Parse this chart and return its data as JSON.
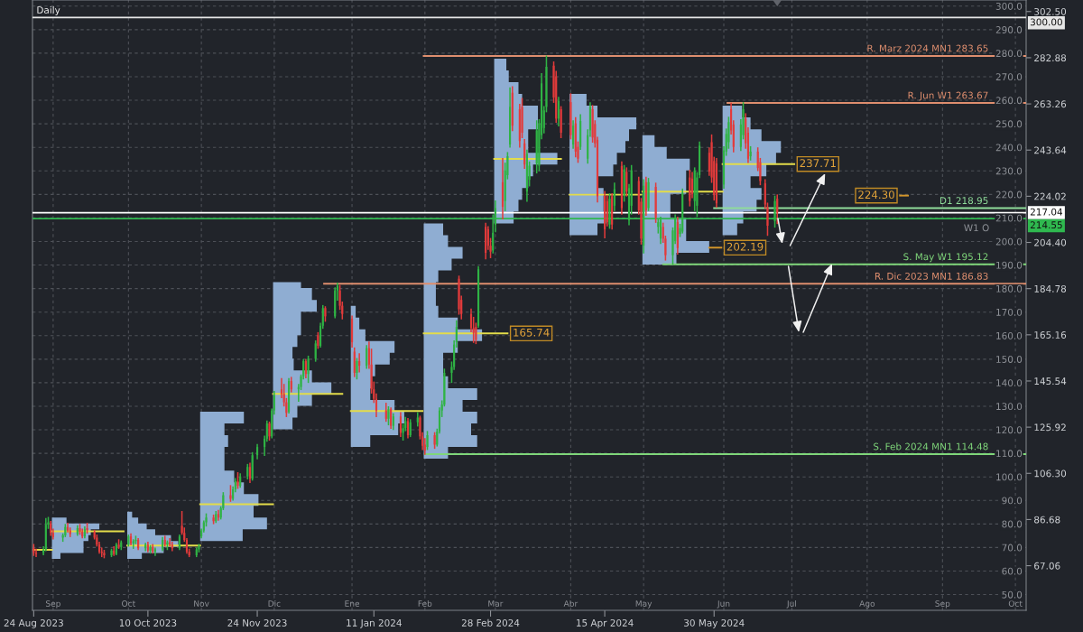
{
  "chart_data": {
    "type": "candlestick",
    "title": "Daily",
    "x": [
      "2023-08-24",
      "2023-08-25",
      "2023-08-28",
      "2023-08-29",
      "2023-08-30",
      "2023-08-31",
      "2023-09-01",
      "2023-09-05",
      "2023-09-06",
      "2023-09-07",
      "2023-09-08",
      "2023-09-11",
      "2023-09-12",
      "2023-09-13",
      "2023-09-14",
      "2023-09-15",
      "2023-09-18",
      "2023-09-19",
      "2023-09-20",
      "2023-09-21",
      "2023-09-22",
      "2023-09-25",
      "2023-09-26",
      "2023-09-27",
      "2023-09-28",
      "2023-09-29",
      "2023-10-02",
      "2023-10-03",
      "2023-10-04",
      "2023-10-05",
      "2023-10-06",
      "2023-10-09",
      "2023-10-10",
      "2023-10-11",
      "2023-10-12",
      "2023-10-13",
      "2023-10-16",
      "2023-10-17",
      "2023-10-18",
      "2023-10-19",
      "2023-10-20",
      "2023-10-23",
      "2023-10-24",
      "2023-10-25",
      "2023-10-26",
      "2023-10-27",
      "2023-10-30",
      "2023-10-31",
      "2023-11-01",
      "2023-11-02",
      "2023-11-03",
      "2023-11-06",
      "2023-11-07",
      "2023-11-08",
      "2023-11-09",
      "2023-11-10",
      "2023-11-13",
      "2023-11-14",
      "2023-11-15",
      "2023-11-16",
      "2023-11-17",
      "2023-11-20",
      "2023-11-21",
      "2023-11-22",
      "2023-11-24",
      "2023-11-27",
      "2023-11-28",
      "2023-11-29",
      "2023-11-30",
      "2023-12-01",
      "2023-12-04",
      "2023-12-05",
      "2023-12-06",
      "2023-12-07",
      "2023-12-08",
      "2023-12-11",
      "2023-12-12",
      "2023-12-13",
      "2023-12-14",
      "2023-12-15",
      "2023-12-18",
      "2023-12-19",
      "2023-12-20",
      "2023-12-21",
      "2023-12-22",
      "2023-12-26",
      "2023-12-27",
      "2023-12-28",
      "2023-12-29",
      "2024-01-02",
      "2024-01-03",
      "2024-01-04",
      "2024-01-05",
      "2024-01-08",
      "2024-01-09",
      "2024-01-10",
      "2024-01-11",
      "2024-01-12",
      "2024-01-16",
      "2024-01-17",
      "2024-01-18",
      "2024-01-19",
      "2024-01-22",
      "2024-01-23",
      "2024-01-24",
      "2024-01-25",
      "2024-01-26",
      "2024-01-29",
      "2024-01-30",
      "2024-01-31",
      "2024-02-01",
      "2024-02-02",
      "2024-02-05",
      "2024-02-06",
      "2024-02-07",
      "2024-02-08",
      "2024-02-09",
      "2024-02-12",
      "2024-02-13",
      "2024-02-14",
      "2024-02-15",
      "2024-02-16",
      "2024-02-20",
      "2024-02-21",
      "2024-02-22",
      "2024-02-23",
      "2024-02-26",
      "2024-02-27",
      "2024-02-28",
      "2024-02-29",
      "2024-03-01",
      "2024-03-04",
      "2024-03-05",
      "2024-03-06",
      "2024-03-07",
      "2024-03-08",
      "2024-03-11",
      "2024-03-12",
      "2024-03-13",
      "2024-03-14",
      "2024-03-15",
      "2024-03-18",
      "2024-03-19",
      "2024-03-20",
      "2024-03-21",
      "2024-03-22",
      "2024-03-25",
      "2024-03-26",
      "2024-03-27",
      "2024-03-28",
      "2024-04-01",
      "2024-04-02",
      "2024-04-03",
      "2024-04-04",
      "2024-04-05",
      "2024-04-08",
      "2024-04-09",
      "2024-04-10",
      "2024-04-11",
      "2024-04-12",
      "2024-04-15",
      "2024-04-16",
      "2024-04-17",
      "2024-04-18",
      "2024-04-19",
      "2024-04-22",
      "2024-04-23",
      "2024-04-24",
      "2024-04-25",
      "2024-04-26",
      "2024-04-29",
      "2024-04-30",
      "2024-05-01",
      "2024-05-02",
      "2024-05-03",
      "2024-05-06",
      "2024-05-07",
      "2024-05-08",
      "2024-05-09",
      "2024-05-10",
      "2024-05-13",
      "2024-05-14",
      "2024-05-15",
      "2024-05-16",
      "2024-05-17",
      "2024-05-20",
      "2024-05-21",
      "2024-05-22",
      "2024-05-23",
      "2024-05-24",
      "2024-05-28",
      "2024-05-29",
      "2024-05-30",
      "2024-05-31",
      "2024-06-03",
      "2024-06-04",
      "2024-06-05",
      "2024-06-06",
      "2024-06-07",
      "2024-06-10",
      "2024-06-11",
      "2024-06-12",
      "2024-06-13",
      "2024-06-14",
      "2024-06-17",
      "2024-06-18",
      "2024-06-20",
      "2024-06-21",
      "2024-06-24",
      "2024-06-25"
    ],
    "ohlc": [
      [
        74.5,
        76.0,
        71.5,
        72.5
      ],
      [
        72.5,
        74.0,
        71.0,
        72.0
      ],
      [
        72.5,
        75.0,
        71.8,
        73.8
      ],
      [
        74.0,
        87.0,
        73.5,
        84.5
      ],
      [
        84.5,
        87.5,
        83.0,
        85.5
      ],
      [
        85.0,
        85.8,
        80.0,
        81.0
      ],
      [
        81.0,
        82.5,
        78.5,
        79.2
      ],
      [
        79.0,
        80.5,
        77.5,
        80.0
      ],
      [
        80.0,
        84.5,
        79.5,
        83.5
      ],
      [
        83.5,
        85.0,
        81.5,
        82.0
      ],
      [
        82.0,
        83.0,
        79.5,
        80.5
      ],
      [
        80.5,
        84.0,
        80.0,
        83.0
      ],
      [
        83.0,
        84.5,
        80.5,
        81.5
      ],
      [
        81.5,
        82.5,
        79.0,
        79.5
      ],
      [
        79.5,
        83.5,
        79.0,
        82.5
      ],
      [
        83.0,
        85.0,
        81.0,
        82.2
      ],
      [
        81.5,
        82.0,
        78.5,
        79.0
      ],
      [
        79.0,
        80.0,
        75.5,
        76.0
      ],
      [
        76.0,
        77.0,
        72.5,
        73.0
      ],
      [
        73.0,
        74.5,
        71.0,
        72.5
      ],
      [
        72.5,
        73.5,
        70.5,
        71.5
      ],
      [
        71.5,
        74.0,
        71.0,
        73.5
      ],
      [
        73.5,
        75.0,
        71.5,
        72.0
      ],
      [
        72.0,
        76.5,
        71.8,
        76.0
      ],
      [
        76.0,
        78.0,
        74.5,
        75.0
      ],
      [
        75.0,
        77.5,
        74.0,
        77.0
      ],
      [
        76.0,
        80.0,
        75.5,
        79.5
      ],
      [
        79.5,
        80.5,
        76.0,
        76.5
      ],
      [
        76.5,
        78.0,
        74.5,
        77.5
      ],
      [
        77.5,
        79.5,
        76.5,
        78.0
      ],
      [
        78.0,
        78.5,
        74.0,
        74.5
      ],
      [
        74.5,
        76.5,
        73.5,
        76.0
      ],
      [
        76.0,
        77.0,
        73.0,
        73.5
      ],
      [
        73.5,
        75.5,
        72.5,
        75.0
      ],
      [
        75.0,
        76.0,
        72.5,
        73.0
      ],
      [
        73.0,
        74.5,
        71.5,
        74.0
      ],
      [
        74.0,
        79.0,
        73.5,
        78.0
      ],
      [
        78.0,
        79.5,
        75.5,
        76.0
      ],
      [
        76.0,
        77.5,
        74.0,
        77.0
      ],
      [
        77.0,
        78.5,
        75.5,
        76.0
      ],
      [
        76.0,
        77.0,
        73.5,
        74.5
      ],
      [
        74.5,
        80.0,
        74.0,
        79.5
      ],
      [
        84.0,
        90.0,
        80.5,
        81.0
      ],
      [
        81.0,
        83.0,
        77.5,
        78.0
      ],
      [
        78.0,
        78.5,
        72.5,
        73.0
      ],
      [
        73.0,
        74.0,
        71.0,
        71.5
      ],
      [
        71.5,
        74.5,
        71.0,
        74.0
      ],
      [
        74.0,
        76.0,
        73.0,
        75.5
      ],
      [
        79.5,
        82.5,
        79.0,
        82.0
      ],
      [
        82.0,
        86.0,
        81.5,
        85.5
      ],
      [
        85.5,
        89.0,
        84.0,
        87.5
      ],
      [
        87.5,
        88.5,
        85.0,
        86.0
      ],
      [
        86.0,
        90.0,
        85.5,
        89.0
      ],
      [
        89.0,
        90.5,
        86.5,
        87.5
      ],
      [
        87.5,
        92.0,
        87.0,
        91.5
      ],
      [
        91.5,
        98.0,
        91.0,
        97.0
      ],
      [
        97.0,
        101.0,
        94.5,
        95.5
      ],
      [
        95.5,
        100.5,
        95.0,
        99.5
      ],
      [
        99.5,
        104.0,
        98.5,
        103.0
      ],
      [
        103.0,
        106.5,
        100.0,
        101.0
      ],
      [
        101.0,
        106.0,
        100.5,
        105.0
      ],
      [
        105.0,
        110.0,
        104.0,
        109.0
      ],
      [
        109.0,
        110.5,
        102.5,
        104.0
      ],
      [
        104.0,
        115.0,
        103.5,
        114.0
      ],
      [
        114.0,
        118.5,
        112.5,
        117.5
      ],
      [
        117.5,
        122.0,
        114.0,
        121.0
      ],
      [
        121.0,
        128.5,
        120.0,
        127.5
      ],
      [
        127.5,
        128.0,
        120.5,
        122.0
      ],
      [
        122.0,
        133.5,
        121.5,
        133.0
      ],
      [
        133.0,
        141.0,
        131.5,
        139.5
      ],
      [
        142.0,
        146.5,
        138.5,
        140.0
      ],
      [
        140.0,
        144.0,
        135.0,
        136.5
      ],
      [
        136.5,
        138.0,
        130.5,
        132.0
      ],
      [
        132.5,
        146.5,
        132.0,
        145.5
      ],
      [
        145.5,
        147.0,
        141.0,
        142.0
      ],
      [
        142.0,
        144.0,
        137.0,
        143.0
      ],
      [
        143.0,
        148.0,
        142.0,
        147.5
      ],
      [
        147.5,
        154.5,
        146.5,
        154.0
      ],
      [
        154.0,
        154.5,
        147.0,
        148.5
      ],
      [
        148.5,
        156.0,
        145.0,
        155.0
      ],
      [
        155.0,
        162.5,
        154.0,
        161.5
      ],
      [
        165.0,
        166.0,
        159.5,
        160.5
      ],
      [
        160.5,
        170.0,
        160.0,
        169.0
      ],
      [
        169.0,
        177.5,
        168.0,
        176.5
      ],
      [
        176.5,
        177.0,
        171.0,
        173.0
      ],
      [
        173.0,
        185.0,
        172.5,
        184.0
      ],
      [
        184.0,
        187.0,
        180.0,
        186.0
      ],
      [
        184.0,
        186.0,
        176.0,
        177.5
      ],
      [
        177.5,
        179.0,
        172.0,
        174.0
      ],
      [
        172.0,
        173.0,
        160.0,
        162.0
      ],
      [
        158.0,
        159.5,
        147.5,
        149.0
      ],
      [
        149.0,
        155.0,
        146.5,
        154.0
      ],
      [
        154.0,
        157.0,
        149.5,
        152.0
      ],
      [
        152.0,
        160.5,
        151.0,
        159.5
      ],
      [
        159.5,
        162.0,
        151.0,
        152.5
      ],
      [
        152.5,
        159.0,
        140.5,
        142.0
      ],
      [
        142.0,
        145.0,
        136.5,
        138.0
      ],
      [
        138.0,
        140.0,
        130.5,
        133.0
      ],
      [
        133.0,
        136.0,
        128.5,
        129.5
      ],
      [
        129.5,
        134.5,
        127.0,
        133.5
      ],
      [
        133.5,
        134.0,
        125.5,
        126.5
      ],
      [
        126.5,
        131.5,
        125.0,
        130.5
      ],
      [
        130.5,
        132.0,
        122.0,
        123.5
      ],
      [
        123.5,
        127.0,
        120.5,
        125.5
      ],
      [
        125.5,
        130.0,
        124.5,
        128.5
      ],
      [
        128.5,
        129.5,
        121.5,
        122.5
      ],
      [
        122.5,
        129.0,
        122.0,
        128.0
      ],
      [
        128.0,
        132.0,
        126.5,
        130.0
      ],
      [
        130.0,
        130.5,
        121.0,
        122.0
      ],
      [
        122.0,
        123.5,
        116.5,
        118.0
      ],
      [
        118.5,
        121.0,
        114.5,
        116.0
      ],
      [
        117.5,
        124.0,
        116.5,
        122.5
      ],
      [
        122.5,
        123.5,
        117.0,
        118.5
      ],
      [
        118.5,
        125.0,
        118.0,
        124.0
      ],
      [
        124.0,
        134.0,
        123.5,
        133.0
      ],
      [
        133.0,
        137.0,
        130.5,
        135.5
      ],
      [
        135.5,
        150.5,
        135.0,
        149.0
      ],
      [
        149.0,
        153.5,
        145.0,
        151.5
      ],
      [
        151.5,
        162.5,
        150.5,
        161.0
      ],
      [
        162.0,
        171.0,
        160.0,
        168.5
      ],
      [
        189.0,
        190.0,
        174.0,
        176.0
      ],
      [
        180.0,
        181.5,
        172.0,
        174.0
      ],
      [
        174.0,
        176.0,
        166.5,
        168.0
      ],
      [
        168.0,
        172.5,
        162.0,
        166.0
      ],
      [
        168.5,
        170.0,
        161.5,
        163.0
      ],
      [
        169.0,
        194.0,
        168.5,
        193.0
      ],
      [
        211.0,
        212.5,
        197.5,
        200.0
      ],
      [
        210.0,
        211.0,
        201.5,
        203.0
      ],
      [
        203.0,
        206.0,
        198.0,
        200.5
      ],
      [
        201.0,
        216.0,
        200.0,
        208.5
      ],
      [
        212.0,
        222.0,
        209.0,
        219.0
      ],
      [
        230.0,
        240.0,
        214.5,
        219.5
      ],
      [
        222.0,
        238.0,
        218.0,
        235.0
      ],
      [
        233.0,
        242.5,
        231.5,
        241.0
      ],
      [
        246.0,
        270.0,
        245.0,
        262.0
      ],
      [
        268.0,
        270.5,
        252.0,
        254.0
      ],
      [
        261.0,
        263.0,
        245.0,
        247.5
      ],
      [
        262.0,
        265.5,
        249.0,
        251.0
      ],
      [
        246.5,
        248.0,
        236.0,
        237.5
      ],
      [
        226.0,
        243.5,
        222.0,
        242.0
      ],
      [
        231.0,
        238.5,
        228.5,
        237.0
      ],
      [
        238.0,
        256.0,
        234.0,
        252.0
      ],
      [
        237.0,
        256.5,
        235.0,
        255.0
      ],
      [
        250.0,
        276.0,
        248.5,
        272.0
      ],
      [
        253.0,
        262.0,
        251.0,
        260.5
      ],
      [
        262.0,
        283.5,
        260.0,
        279.0
      ],
      [
        279.5,
        281.0,
        264.0,
        266.0
      ],
      [
        275.0,
        277.0,
        255.5,
        257.0
      ],
      [
        257.0,
        266.0,
        254.0,
        264.5
      ],
      [
        261.0,
        262.0,
        249.0,
        251.0
      ],
      [
        264.0,
        267.5,
        248.5,
        250.0
      ],
      [
        246.0,
        256.0,
        244.5,
        254.0
      ],
      [
        255.0,
        257.3,
        240.9,
        243.0
      ],
      [
        245.0,
        247.0,
        238.5,
        240.0
      ],
      [
        245.0,
        258.6,
        244.0,
        256.0
      ],
      [
        240.0,
        252.2,
        238.2,
        250.0
      ],
      [
        252.0,
        263.7,
        249.6,
        262.0
      ],
      [
        261.0,
        262.5,
        247.1,
        249.0
      ],
      [
        254.7,
        256.0,
        245.0,
        246.5
      ],
      [
        248.0,
        249.0,
        221.7,
        224.0
      ],
      [
        224.2,
        226.0,
        206.4,
        210.0
      ],
      [
        222.0,
        224.0,
        211.5,
        213.0
      ],
      [
        212.0,
        225.0,
        210.5,
        223.0
      ],
      [
        224.0,
        225.0,
        210.2,
        212.0
      ],
      [
        220.0,
        229.5,
        218.0,
        227.0
      ],
      [
        236.9,
        238.5,
        216.5,
        219.0
      ],
      [
        224.2,
        237.0,
        222.0,
        235.5
      ],
      [
        234.4,
        236.0,
        224.2,
        226.0
      ],
      [
        213.8,
        229.0,
        212.0,
        227.5
      ],
      [
        220.0,
        237.0,
        216.5,
        235.0
      ],
      [
        230.5,
        232.0,
        216.5,
        218.0
      ],
      [
        221.7,
        223.0,
        203.8,
        206.0
      ],
      [
        203.0,
        231.0,
        200.0,
        228.5
      ],
      [
        230.0,
        232.0,
        216.0,
        218.0
      ],
      [
        219.0,
        231.5,
        218.0,
        230.0
      ],
      [
        228.0,
        229.5,
        213.0,
        215.0
      ],
      [
        211.0,
        214.0,
        208.5,
        213.0
      ],
      [
        206.0,
        215.0,
        204.0,
        214.0
      ],
      [
        211.0,
        212.5,
        204.5,
        206.0
      ],
      [
        206.0,
        207.0,
        197.0,
        199.0
      ],
      [
        199.0,
        210.5,
        195.2,
        209.5
      ],
      [
        205.0,
        216.0,
        204.0,
        215.0
      ],
      [
        213.0,
        215.0,
        199.5,
        202.0
      ],
      [
        208.0,
        212.0,
        207.0,
        210.5
      ],
      [
        209.0,
        227.0,
        208.5,
        225.5
      ],
      [
        232.0,
        235.0,
        220.0,
        222.0
      ],
      [
        231.5,
        234.0,
        223.5,
        225.0
      ],
      [
        222.0,
        236.0,
        218.0,
        235.0
      ],
      [
        220.0,
        234.0,
        215.5,
        232.0
      ],
      [
        233.0,
        247.0,
        232.0,
        245.5
      ],
      [
        242.5,
        244.5,
        233.0,
        234.5
      ],
      [
        247.0,
        250.0,
        230.0,
        232.0
      ],
      [
        239.0,
        240.5,
        222.5,
        224.5
      ],
      [
        238.0,
        240.0,
        219.5,
        221.0
      ],
      [
        229.0,
        245.0,
        227.5,
        243.5
      ],
      [
        243.0,
        252.5,
        241.5,
        250.5
      ],
      [
        247.0,
        257.5,
        244.5,
        255.5
      ],
      [
        261.0,
        263.5,
        250.5,
        252.0
      ],
      [
        254.5,
        256.0,
        243.0,
        245.0
      ],
      [
        245.0,
        256.5,
        243.5,
        254.5
      ],
      [
        250.0,
        263.7,
        248.5,
        261.0
      ],
      [
        257.0,
        259.0,
        244.5,
        246.5
      ],
      [
        251.0,
        253.0,
        238.5,
        240.0
      ],
      [
        241.0,
        245.0,
        239.5,
        243.0
      ],
      [
        243.0,
        244.5,
        235.0,
        236.0
      ],
      [
        238.5,
        240.0,
        229.0,
        230.5
      ],
      [
        229.5,
        231.0,
        219.0,
        220.5
      ],
      [
        219.5,
        221.0,
        207.5,
        211.5
      ],
      [
        213.5,
        224.0,
        211.0,
        222.0
      ],
      [
        223.0,
        224.5,
        212.5,
        217.04
      ]
    ],
    "colors": [
      "#e23b3b",
      "#e23b3b",
      "#2fb344",
      "#2fb344",
      "#2fb344",
      "#e23b3b",
      "#e23b3b",
      "#2fb344",
      "#2fb344",
      "#e23b3b",
      "#e23b3b",
      "#2fb344",
      "#e23b3b",
      "#e23b3b",
      "#2fb344",
      "#e23b3b",
      "#e23b3b",
      "#e23b3b",
      "#e23b3b",
      "#e23b3b",
      "#e23b3b",
      "#2fb344",
      "#e23b3b",
      "#2fb344",
      "#e23b3b",
      "#2fb344",
      "#2fb344",
      "#e23b3b",
      "#2fb344",
      "#2fb344",
      "#e23b3b",
      "#2fb344",
      "#e23b3b",
      "#2fb344",
      "#e23b3b",
      "#2fb344",
      "#2fb344",
      "#e23b3b",
      "#2fb344",
      "#e23b3b",
      "#e23b3b",
      "#2fb344",
      "#e23b3b",
      "#e23b3b",
      "#e23b3b",
      "#e23b3b",
      "#2fb344",
      "#2fb344",
      "#2fb344",
      "#2fb344",
      "#2fb344",
      "#e23b3b",
      "#2fb344",
      "#e23b3b",
      "#2fb344",
      "#2fb344",
      "#e23b3b",
      "#2fb344",
      "#2fb344",
      "#e23b3b",
      "#2fb344",
      "#2fb344",
      "#e23b3b",
      "#2fb344",
      "#2fb344",
      "#2fb344",
      "#2fb344",
      "#e23b3b",
      "#2fb344",
      "#2fb344",
      "#e23b3b",
      "#e23b3b",
      "#e23b3b",
      "#2fb344",
      "#e23b3b",
      "#2fb344",
      "#2fb344",
      "#2fb344",
      "#e23b3b",
      "#2fb344",
      "#2fb344",
      "#e23b3b",
      "#2fb344",
      "#2fb344",
      "#e23b3b",
      "#2fb344",
      "#2fb344",
      "#e23b3b",
      "#e23b3b",
      "#e23b3b",
      "#e23b3b",
      "#2fb344",
      "#e23b3b",
      "#2fb344",
      "#e23b3b",
      "#e23b3b",
      "#e23b3b",
      "#e23b3b",
      "#e23b3b",
      "#2fb344",
      "#e23b3b",
      "#2fb344",
      "#e23b3b",
      "#2fb344",
      "#2fb344",
      "#e23b3b",
      "#2fb344",
      "#2fb344",
      "#e23b3b",
      "#e23b3b",
      "#e23b3b",
      "#2fb344",
      "#e23b3b",
      "#2fb344",
      "#2fb344",
      "#2fb344",
      "#2fb344",
      "#2fb344",
      "#2fb344",
      "#2fb344",
      "#e23b3b",
      "#e23b3b",
      "#e23b3b",
      "#e23b3b",
      "#e23b3b",
      "#2fb344",
      "#e23b3b",
      "#e23b3b",
      "#e23b3b",
      "#2fb344",
      "#2fb344",
      "#e23b3b",
      "#2fb344",
      "#2fb344",
      "#2fb344",
      "#e23b3b",
      "#e23b3b",
      "#e23b3b",
      "#e23b3b",
      "#2fb344",
      "#2fb344",
      "#2fb344",
      "#2fb344",
      "#2fb344",
      "#2fb344",
      "#2fb344",
      "#e23b3b",
      "#e23b3b",
      "#2fb344",
      "#e23b3b",
      "#e23b3b",
      "#2fb344",
      "#e23b3b",
      "#e23b3b",
      "#2fb344",
      "#2fb344",
      "#2fb344",
      "#e23b3b",
      "#e23b3b",
      "#e23b3b",
      "#e23b3b",
      "#e23b3b",
      "#2fb344",
      "#e23b3b",
      "#2fb344",
      "#e23b3b",
      "#2fb344",
      "#e23b3b",
      "#2fb344",
      "#2fb344",
      "#e23b3b",
      "#e23b3b",
      "#2fb344",
      "#e23b3b",
      "#2fb344",
      "#e23b3b",
      "#2fb344",
      "#2fb344",
      "#e23b3b",
      "#e23b3b",
      "#2fb344",
      "#2fb344",
      "#e23b3b",
      "#2fb344",
      "#2fb344",
      "#e23b3b",
      "#e23b3b",
      "#2fb344",
      "#2fb344",
      "#2fb344",
      "#e23b3b",
      "#e23b3b",
      "#e23b3b",
      "#e23b3b",
      "#2fb344",
      "#2fb344",
      "#2fb344",
      "#e23b3b",
      "#e23b3b",
      "#2fb344",
      "#2fb344",
      "#e23b3b",
      "#e23b3b",
      "#2fb344",
      "#e23b3b",
      "#e23b3b",
      "#e23b3b",
      "#e23b3b",
      "#2fb344",
      "#e23b3b"
    ],
    "series": [
      {
        "type": "line",
        "color": "#e3dc4a",
        "x": [
          "2023-08-23T12:00",
          "2023-08-31T12:00"
        ],
        "values": [
          73.8,
          73.8
        ]
      },
      {
        "type": "line",
        "color": "#e3dc4a",
        "x": [
          "2023-08-31T12:00",
          "2023-09-30"
        ],
        "values": [
          81.7,
          81.7
        ]
      },
      {
        "type": "line",
        "color": "#e3dc4a",
        "x": [
          "2023-10-01T12:00",
          "2023-10-31T12:00"
        ],
        "values": [
          75.6,
          75.6
        ]
      },
      {
        "type": "line",
        "color": "#e3dc4a",
        "x": [
          "2023-10-31T12:00",
          "2023-11-30T12:00"
        ],
        "values": [
          93.2,
          93.2
        ]
      },
      {
        "type": "line",
        "color": "#e3dc4a",
        "x": [
          "2023-11-30T12:00",
          "2023-12-29"
        ],
        "values": [
          140.1,
          140.1
        ]
      },
      {
        "type": "line",
        "color": "#e3dc4a",
        "x": [
          "2024-01-01T12:00",
          "2024-01-31"
        ],
        "values": [
          132.8,
          132.8
        ]
      },
      {
        "type": "line",
        "color": "#e3dc4a",
        "x": [
          "2024-01-31T12:00",
          "2024-03-06"
        ],
        "values": [
          165.74,
          165.74
        ]
      },
      {
        "type": "line",
        "color": "#e3dc4a",
        "x": [
          "2024-02-29T12:00",
          "2024-03-28"
        ],
        "values": [
          239.9,
          239.9
        ]
      },
      {
        "type": "line",
        "color": "#e3dc4a",
        "x": [
          "2024-03-31T12:00",
          "2024-04-30"
        ],
        "values": [
          224.7,
          224.7
        ]
      },
      {
        "type": "line",
        "color": "#e3dc4a",
        "x": [
          "2024-04-30T12:00",
          "2024-06-02T12:00"
        ],
        "values": [
          226.0,
          226.0
        ]
      },
      {
        "type": "line",
        "color": "#e3dc4a",
        "x": [
          "2024-06-02T12:00",
          "2024-07-02"
        ],
        "values": [
          237.71,
          237.71
        ]
      },
      {
        "type": "line",
        "color": "#d4962a",
        "x": [
          "2024-05-28",
          "2024-06-02"
        ],
        "values": [
          202.19,
          202.19
        ]
      },
      {
        "type": "line",
        "color": "#d4962a",
        "x": [
          "2024-08-14T12:00",
          "2024-08-17T19:00"
        ],
        "values": [
          224.3,
          224.3
        ]
      },
      {
        "type": "line",
        "name": "R. Marz 2024 MN1 283.65",
        "color": "#de8e6e",
        "x": [
          "2024-01-31T12:00",
          "2024-10-05T10:00"
        ],
        "values": [
          283.65,
          283.65
        ]
      },
      {
        "type": "line",
        "name": "R. Jun W1 263.67",
        "color": "#de8e6e",
        "x": [
          "2024-06-04T12:00",
          "2024-10-05T10:00"
        ],
        "values": [
          263.67,
          263.67
        ]
      },
      {
        "type": "line",
        "name": "D1 218.95",
        "color": "#8fdc9a",
        "x": [
          "2024-05-30",
          "2024-10-05T10:00"
        ],
        "values": [
          218.95,
          218.95
        ]
      },
      {
        "type": "line",
        "name": "S. May W1 195.12",
        "color": "#7fd67a",
        "x": [
          "2024-05-09",
          "2024-10-05T10:00"
        ],
        "values": [
          195.12,
          195.12
        ]
      },
      {
        "type": "line",
        "name": "R. Dic 2023 MN1 186.83",
        "color": "#de8e6e",
        "x": [
          "2023-12-21T12:00",
          "2024-10-05T10:00"
        ],
        "values": [
          186.83,
          186.83
        ]
      },
      {
        "type": "line",
        "name": "S. Feb 2024 MN1 114.48",
        "color": "#7fd67a",
        "x": [
          "2024-02-01",
          "2024-10-05T10:00"
        ],
        "values": [
          114.48,
          114.48
        ]
      }
    ],
    "ref_lines": [
      {
        "axis": "y",
        "value": 300.0,
        "label": "300.00",
        "color": "#e6e6e6"
      },
      {
        "axis": "y",
        "value": 217.04,
        "label": "217.04",
        "color": "#ffffff"
      },
      {
        "axis": "y",
        "value": 214.55,
        "label": "214.55",
        "color": "#2fb84f"
      }
    ],
    "annotations": [
      {
        "text": "165.74",
        "x": "2024-03-06",
        "y": 165.74
      },
      {
        "text": "237.71",
        "x": "2024-07-02",
        "y": 237.71
      },
      {
        "text": "202.19",
        "x": "2024-06-02",
        "y": 202.19
      },
      {
        "text": "224.30",
        "x": "2024-08-14T12:00",
        "y": 224.3
      },
      "W1 O"
    ],
    "xlim": [
      "2023-08-23T12:00",
      "2024-10-05T10:00"
    ],
    "xticks": [
      {
        "value": "2023-08-24",
        "label": "24 Aug 2023"
      },
      {
        "value": "2023-10-10",
        "label": "10 Oct 2023"
      },
      {
        "value": "2023-11-24",
        "label": "24 Nov 2023"
      },
      {
        "value": "2024-01-11",
        "label": "11 Jan 2024"
      },
      {
        "value": "2024-02-28",
        "label": "28 Feb 2024"
      },
      {
        "value": "2024-04-15",
        "label": "15 Apr 2024"
      },
      {
        "value": "2024-05-30",
        "label": "30 May 2024"
      }
    ],
    "x2lim": [
      "2023-08-23T12:00",
      "2024-10-05T10:00"
    ],
    "x2ticks": [
      {
        "value": "2023-09-01",
        "label": "Sep"
      },
      {
        "value": "2023-10-02",
        "label": "Oct"
      },
      {
        "value": "2023-11-01",
        "label": "Nov"
      },
      {
        "value": "2023-12-01",
        "label": "Dic"
      },
      {
        "value": "2024-01-02",
        "label": "Ene"
      },
      {
        "value": "2024-02-01",
        "label": "Feb"
      },
      {
        "value": "2024-03-01",
        "label": "Mar"
      },
      {
        "value": "2024-04-01",
        "label": "Abr"
      },
      {
        "value": "2024-05-01",
        "label": "May"
      },
      {
        "value": "2024-06-03",
        "label": "Jun"
      },
      {
        "value": "2024-07-01",
        "label": "Jul"
      },
      {
        "value": "2024-08-01",
        "label": "Ago"
      },
      {
        "value": "2024-09-01",
        "label": "Sep"
      },
      {
        "value": "2024-10-01",
        "label": "Oct"
      }
    ],
    "ylim": [
      48.1,
      307.4
    ],
    "yticks": [
      67.06,
      86.68,
      {
        "value": 106.3,
        "label": "106.30"
      },
      125.92,
      145.54,
      165.16,
      184.78,
      {
        "value": 204.4,
        "label": "204.40"
      },
      224.02,
      243.64,
      263.26,
      282.88,
      {
        "value": 302.5,
        "label": "302.50"
      }
    ],
    "y2lim": [
      43.3,
      302.6
    ],
    "y2ticks": [
      {
        "value": 50,
        "label": "50.0"
      },
      {
        "value": 60,
        "label": "60.0"
      },
      {
        "value": 70,
        "label": "70.0"
      },
      {
        "value": 80,
        "label": "80.0"
      },
      {
        "value": 90,
        "label": "90.0"
      },
      {
        "value": 100,
        "label": "100.0"
      },
      {
        "value": 110,
        "label": "110.0"
      },
      {
        "value": 120,
        "label": "120.0"
      },
      {
        "value": 130,
        "label": "130.0"
      },
      {
        "value": 140,
        "label": "140.0"
      },
      {
        "value": 150,
        "label": "150.0"
      },
      {
        "value": 160,
        "label": "160.0"
      },
      {
        "value": 170,
        "label": "170.0"
      },
      {
        "value": 180,
        "label": "180.0"
      },
      {
        "value": 190,
        "label": "190.0"
      },
      {
        "value": 200,
        "label": "200.0"
      },
      {
        "value": 210,
        "label": "210.0"
      },
      {
        "value": 220,
        "label": "220.0"
      },
      {
        "value": 230,
        "label": "230.0"
      },
      {
        "value": 240,
        "label": "240.0"
      },
      {
        "value": 250,
        "label": "250.0"
      },
      {
        "value": 260,
        "label": "260.0"
      },
      {
        "value": 270,
        "label": "270.0"
      },
      {
        "value": 280,
        "label": "280.0"
      },
      {
        "value": 290,
        "label": "290.0"
      },
      {
        "value": 300,
        "label": "300.0"
      }
    ],
    "grid": true
  }
}
